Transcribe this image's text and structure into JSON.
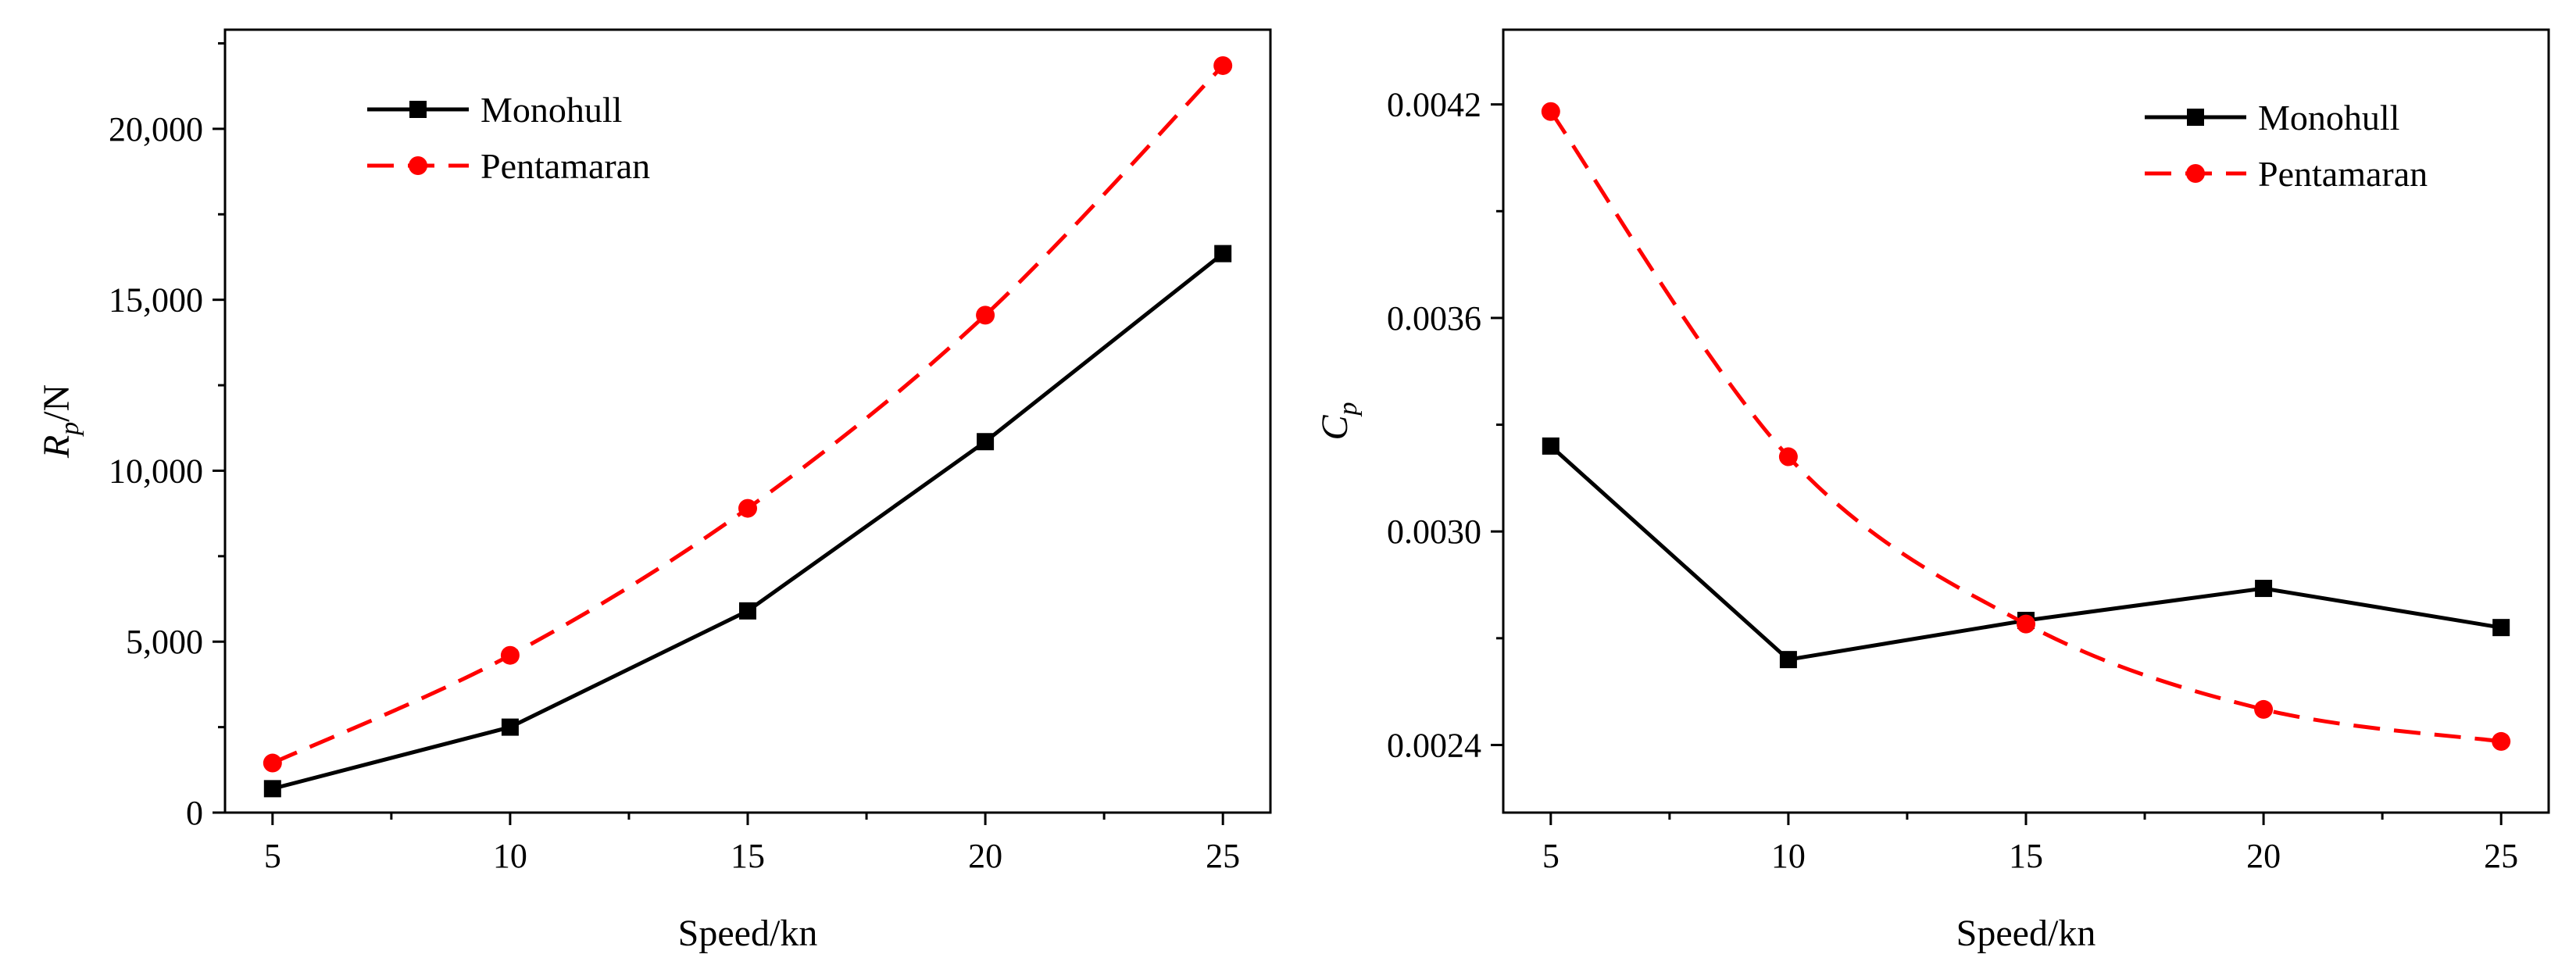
{
  "chart_data": [
    {
      "type": "line",
      "title": "",
      "xlabel": "Speed/kn",
      "ylabel": {
        "main": "R",
        "sub": "p",
        "suffix": "/N"
      },
      "x": [
        5,
        10,
        15,
        20,
        25
      ],
      "xticks": [
        "5",
        "10",
        "15",
        "20",
        "25"
      ],
      "yticks": [
        "0",
        "5,000",
        "10,000",
        "15,000",
        "20,000"
      ],
      "ylim": [
        0,
        22900
      ],
      "xlim": [
        4,
        26
      ],
      "legend_position": "top-left",
      "grid": false,
      "series": [
        {
          "name": "Monohull",
          "values": [
            700,
            2500,
            5900,
            10850,
            16350
          ],
          "color": "#000000",
          "dash": "solid",
          "marker": "square"
        },
        {
          "name": "Pentamaran",
          "values": [
            1450,
            4600,
            8900,
            14550,
            21850
          ],
          "color": "#ff0000",
          "dash": "dashed",
          "marker": "circle"
        }
      ]
    },
    {
      "type": "line",
      "title": "",
      "xlabel": "Speed/kn",
      "ylabel": {
        "main": "C",
        "sub": "p",
        "suffix": ""
      },
      "x": [
        5,
        10,
        15,
        20,
        25
      ],
      "xticks": [
        "5",
        "10",
        "15",
        "20",
        "25"
      ],
      "yticks": [
        "0.0024",
        "0.0030",
        "0.0036",
        "0.0042"
      ],
      "ylim": [
        0.00221,
        0.00441
      ],
      "xlim": [
        4,
        26
      ],
      "legend_position": "top-right",
      "grid": false,
      "series": [
        {
          "name": "Monohull",
          "values": [
            0.00324,
            0.00264,
            0.00275,
            0.00284,
            0.00273
          ],
          "color": "#000000",
          "dash": "solid",
          "marker": "square"
        },
        {
          "name": "Pentamaran",
          "values": [
            0.00418,
            0.00321,
            0.00274,
            0.0025,
            0.00241
          ],
          "color": "#ff0000",
          "dash": "dashed",
          "marker": "circle"
        }
      ]
    }
  ]
}
